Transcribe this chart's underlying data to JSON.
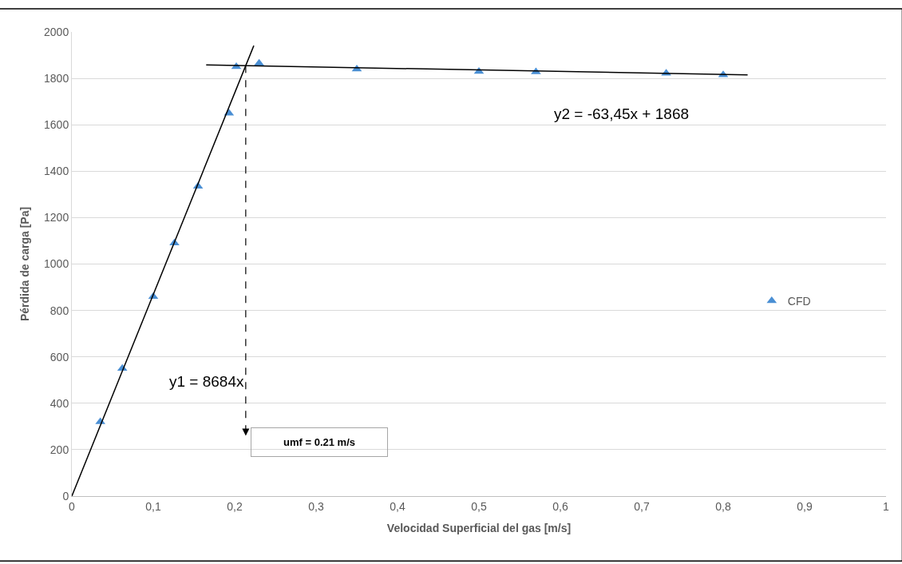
{
  "chart_data": {
    "type": "scatter",
    "xlabel": "Velocidad Superficial del gas [m/s]",
    "ylabel": "Pérdida de carga [Pa]",
    "xlim": [
      0,
      1
    ],
    "xticks": [
      {
        "value": 0,
        "label": "0"
      },
      {
        "value": 0.1,
        "label": "0,1"
      },
      {
        "value": 0.2,
        "label": "0,2"
      },
      {
        "value": 0.3,
        "label": "0,3"
      },
      {
        "value": 0.4,
        "label": "0,4"
      },
      {
        "value": 0.5,
        "label": "0,5"
      },
      {
        "value": 0.6,
        "label": "0,6"
      },
      {
        "value": 0.7,
        "label": "0,7"
      },
      {
        "value": 0.8,
        "label": "0,8"
      },
      {
        "value": 0.9,
        "label": "0,9"
      },
      {
        "value": 1,
        "label": "1"
      }
    ],
    "ylim": [
      0,
      2000
    ],
    "yticks": [
      0,
      200,
      400,
      600,
      800,
      1000,
      1200,
      1400,
      1600,
      1800,
      2000
    ],
    "grid": "y",
    "legend": "right",
    "series": [
      {
        "name": "CFD",
        "marker": "triangle",
        "color": "#4a8fd4",
        "x": [
          0.035,
          0.062,
          0.1,
          0.126,
          0.155,
          0.193,
          0.202,
          0.23,
          0.35,
          0.5,
          0.57,
          0.73,
          0.8
        ],
        "values": [
          320,
          550,
          860,
          1090,
          1335,
          1650,
          1850,
          1865,
          1840,
          1830,
          1828,
          1822,
          1815
        ]
      },
      {
        "type": "line",
        "color": "#000000",
        "x": [
          0,
          0.2235
        ],
        "values": [
          0,
          1941
        ]
      },
      {
        "type": "line",
        "color": "#000000",
        "x": [
          0.165,
          0.83
        ],
        "values": [
          1858,
          1815
        ]
      }
    ],
    "annotations": [
      "y1 = 8684x",
      "y2 = -63,45x + 1868",
      "umf = 0.21 m/s"
    ]
  }
}
